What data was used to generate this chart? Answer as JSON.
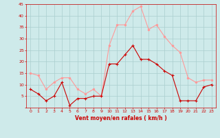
{
  "hours": [
    0,
    1,
    2,
    3,
    4,
    5,
    6,
    7,
    8,
    9,
    10,
    11,
    12,
    13,
    14,
    15,
    16,
    17,
    18,
    19,
    20,
    21,
    22,
    23
  ],
  "vent_moyen": [
    8,
    6,
    3,
    5,
    11,
    1,
    4,
    4,
    5,
    5,
    19,
    19,
    23,
    27,
    21,
    21,
    19,
    16,
    14,
    3,
    3,
    3,
    9,
    10
  ],
  "rafales": [
    15,
    14,
    8,
    11,
    13,
    13,
    8,
    6,
    8,
    5,
    27,
    36,
    36,
    42,
    44,
    34,
    36,
    31,
    27,
    24,
    13,
    11,
    12,
    12
  ],
  "bg_color": "#ceeaea",
  "grid_color": "#aacece",
  "line_moyen_color": "#cc0000",
  "line_rafales_color": "#ff9999",
  "xlabel": "Vent moyen/en rafales ( km/h )",
  "ylim": [
    0,
    45
  ],
  "yticks": [
    0,
    5,
    10,
    15,
    20,
    25,
    30,
    35,
    40,
    45
  ],
  "xlim": [
    -0.5,
    23.5
  ]
}
